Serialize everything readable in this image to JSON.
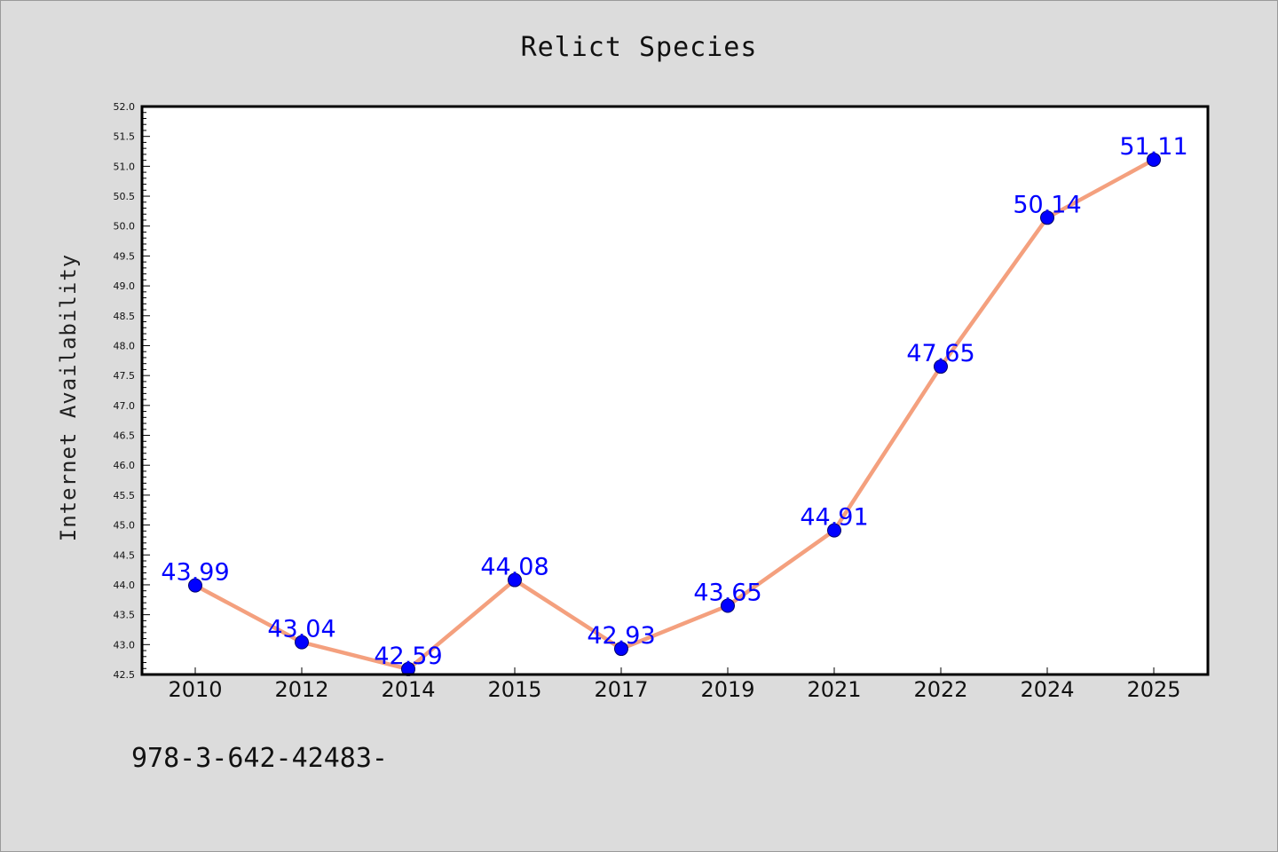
{
  "chart_data": {
    "type": "line",
    "title": "Relict Species",
    "xlabel": "",
    "ylabel": "Internet Availability",
    "categories": [
      "2010",
      "2012",
      "2014",
      "2015",
      "2017",
      "2019",
      "2021",
      "2022",
      "2024",
      "2025"
    ],
    "values": [
      43.99,
      43.04,
      42.59,
      44.08,
      42.93,
      43.65,
      44.91,
      47.65,
      50.14,
      51.11
    ],
    "data_labels": [
      "43.99",
      "43.04",
      "42.59",
      "44.08",
      "42.93",
      "43.65",
      "44.91",
      "47.65",
      "50.14",
      "51.11"
    ],
    "ylim": [
      42.5,
      52.0
    ],
    "ytick_step": 0.5,
    "grid": false,
    "colors": {
      "line": "#f4a07e",
      "marker": "#0000ff",
      "label": "#0000ff",
      "background": "#dcdcdc",
      "plot_background": "#ffffff"
    }
  },
  "footer": {
    "text": "978-3-642-42483-"
  }
}
